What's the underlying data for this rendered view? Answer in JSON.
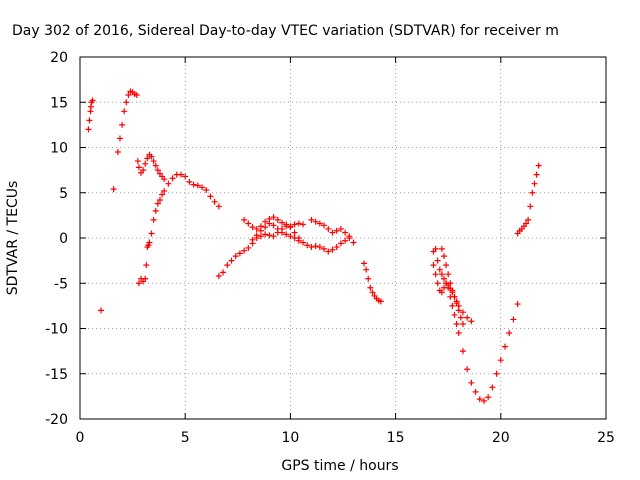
{
  "chart_data": {
    "type": "scatter",
    "title": "Day 302 of 2016, Sidereal Day-to-day VTEC variation (SDTVAR) for receiver m",
    "xlabel": "GPS time / hours",
    "ylabel": "SDTVAR / TECUs",
    "xlim": [
      0,
      25
    ],
    "ylim": [
      -20,
      20
    ],
    "xticks": [
      "0",
      "5",
      "10",
      "15",
      "20",
      "25"
    ],
    "yticks": [
      "-20",
      "-15",
      "-10",
      "-5",
      "0",
      "5",
      "10",
      "15",
      "20"
    ],
    "grid": true,
    "marker": "+",
    "color": "#ff0000",
    "series": [
      {
        "x": [
          0.4,
          0.45,
          0.5,
          0.52,
          0.55,
          0.6
        ],
        "y": [
          12,
          13,
          14,
          14.5,
          15,
          15.2
        ]
      },
      {
        "x": [
          1.0
        ],
        "y": [
          -8
        ]
      },
      {
        "x": [
          1.6
        ],
        "y": [
          5.4
        ]
      },
      {
        "x": [
          1.8,
          1.9,
          2.0,
          2.1,
          2.2,
          2.3,
          2.4,
          2.5,
          2.6,
          2.7
        ],
        "y": [
          9.5,
          11,
          12.5,
          14,
          15,
          15.8,
          16.2,
          16.1,
          15.9,
          15.8
        ]
      },
      {
        "x": [
          2.75,
          2.8,
          2.9,
          3.0,
          3.1,
          3.2,
          3.3,
          3.4,
          3.5,
          3.6,
          3.7,
          3.8,
          3.9,
          4.0
        ],
        "y": [
          8.5,
          7.8,
          7.2,
          7.5,
          8.2,
          8.8,
          9.2,
          9.0,
          8.5,
          8.0,
          7.5,
          7.1,
          6.8,
          6.5
        ]
      },
      {
        "x": [
          2.8,
          2.9,
          3.0,
          3.1,
          3.15,
          3.2,
          3.25,
          3.3,
          3.4,
          3.5,
          3.6,
          3.7,
          3.8,
          3.9,
          4.0,
          4.2,
          4.4,
          4.6,
          4.8,
          5.0,
          5.2,
          5.4,
          5.6,
          5.8,
          6.0,
          6.2,
          6.4,
          6.6
        ],
        "y": [
          -5,
          -4.5,
          -4.8,
          -4.5,
          -3,
          -1,
          -0.8,
          -0.5,
          0.5,
          2,
          3,
          3.8,
          4.2,
          4.8,
          5.2,
          6.0,
          6.6,
          7.0,
          7.0,
          6.8,
          6.2,
          5.9,
          5.8,
          5.6,
          5.3,
          4.6,
          4.0,
          3.5
        ]
      },
      {
        "x": [
          6.6,
          6.8,
          7.0,
          7.2,
          7.4,
          7.6,
          7.8,
          8.0,
          8.2,
          8.4,
          8.6,
          8.8,
          9.0,
          9.2,
          9.4,
          9.6,
          9.8,
          10.0,
          10.2,
          10.4,
          10.6,
          10.8,
          11.0,
          11.2,
          11.4,
          11.6,
          11.8,
          12.0,
          12.2,
          12.4,
          12.6,
          12.8,
          13.0
        ],
        "y": [
          -4.2,
          -3.8,
          -3.0,
          -2.5,
          -2.0,
          -1.7,
          -1.4,
          -1.1,
          -0.6,
          0.0,
          0.2,
          0.4,
          0.3,
          0.2,
          0.6,
          1.0,
          1.3,
          1.2,
          0.6,
          0.0,
          -0.5,
          -0.8,
          -1.0,
          -0.9,
          -1.0,
          -1.2,
          -1.5,
          -1.3,
          -1.0,
          -0.6,
          -0.3,
          0.0,
          -0.5
        ]
      },
      {
        "x": [
          7.8,
          8.0,
          8.2,
          8.4,
          8.6,
          8.8,
          9.0,
          9.2,
          9.4,
          9.6,
          9.8,
          10.0,
          10.2,
          10.4,
          10.6
        ],
        "y": [
          2.0,
          1.6,
          1.2,
          1.0,
          1.3,
          1.8,
          2.1,
          2.3,
          2.0,
          1.7,
          1.5,
          1.3,
          1.5,
          1.6,
          1.5
        ]
      },
      {
        "x": [
          8.2,
          8.4,
          8.6,
          8.8,
          9.0,
          9.2,
          9.4,
          9.6,
          9.8,
          10.0,
          10.2,
          10.4
        ],
        "y": [
          -0.2,
          0.3,
          0.8,
          1.2,
          1.6,
          1.4,
          1.0,
          0.6,
          0.4,
          0.2,
          0.0,
          -0.3
        ]
      },
      {
        "x": [
          11.0,
          11.2,
          11.4,
          11.6,
          11.8,
          12.0,
          12.2,
          12.4,
          12.6,
          12.8
        ],
        "y": [
          2.0,
          1.8,
          1.6,
          1.4,
          1.0,
          0.6,
          0.8,
          1.0,
          0.6,
          0.2
        ]
      },
      {
        "x": [
          13.5,
          13.6,
          13.7,
          13.8,
          13.9,
          14.0,
          14.1,
          14.2,
          14.3
        ],
        "y": [
          -2.8,
          -3.5,
          -4.5,
          -5.5,
          -6.0,
          -6.4,
          -6.7,
          -6.9,
          -7.0
        ]
      },
      {
        "x": [
          16.8,
          16.9,
          17.0,
          17.1,
          17.2,
          17.3,
          17.4,
          17.5,
          17.6,
          17.7,
          17.8,
          17.9,
          18.0,
          18.2,
          18.4,
          18.6,
          18.8,
          19.0,
          19.2,
          19.4,
          19.6,
          19.8,
          20.0,
          20.2,
          20.4,
          20.6,
          20.8
        ],
        "y": [
          -3.0,
          -4.0,
          -5.0,
          -5.8,
          -6.0,
          -5.5,
          -5.0,
          -5.5,
          -6.5,
          -7.5,
          -8.5,
          -9.5,
          -10.5,
          -12.5,
          -14.5,
          -16.0,
          -17.0,
          -17.8,
          -18.0,
          -17.6,
          -16.5,
          -15.0,
          -13.5,
          -12.0,
          -10.5,
          -9.0,
          -7.3
        ]
      },
      {
        "x": [
          16.8,
          16.9,
          17.0,
          17.1,
          17.2,
          17.3,
          17.4,
          17.5,
          17.6,
          17.7,
          17.8,
          17.9,
          18.0,
          18.2,
          18.4,
          18.6
        ],
        "y": [
          -1.5,
          -1.2,
          -2.5,
          -3.5,
          -4.0,
          -4.5,
          -5.0,
          -5.2,
          -5.6,
          -6.0,
          -6.5,
          -7.0,
          -7.5,
          -8.2,
          -8.8,
          -9.2
        ]
      },
      {
        "x": [
          17.2,
          17.3,
          17.4,
          17.5,
          17.6,
          17.7,
          17.8,
          17.9,
          18.0,
          18.1,
          18.2
        ],
        "y": [
          -1.2,
          -2.0,
          -3.0,
          -4.0,
          -5.0,
          -5.8,
          -6.5,
          -7.2,
          -8.0,
          -8.8,
          -9.5
        ]
      },
      {
        "x": [
          20.8,
          20.9,
          21.0,
          21.1,
          21.2,
          21.3,
          21.4,
          21.5,
          21.6,
          21.7,
          21.8
        ],
        "y": [
          0.5,
          0.8,
          1.0,
          1.3,
          1.6,
          2.0,
          3.5,
          5.0,
          6.0,
          7.0,
          8.0
        ]
      }
    ]
  }
}
